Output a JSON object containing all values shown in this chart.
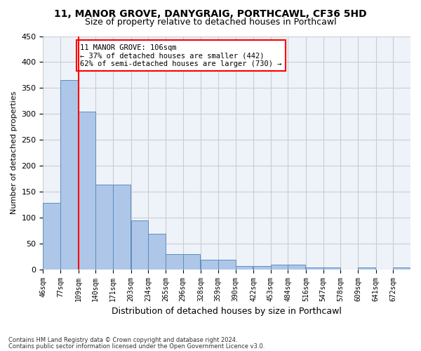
{
  "title1": "11, MANOR GROVE, DANYGRAIG, PORTHCAWL, CF36 5HD",
  "title2": "Size of property relative to detached houses in Porthcawl",
  "xlabel": "Distribution of detached houses by size in Porthcawl",
  "ylabel": "Number of detached properties",
  "bar_color": "#aec6e8",
  "bar_edge_color": "#5a8fc0",
  "bg_color": "#eef3fa",
  "grid_color": "#cccccc",
  "bins": [
    46,
    77,
    109,
    140,
    171,
    203,
    234,
    265,
    296,
    328,
    359,
    390,
    422,
    453,
    484,
    516,
    547,
    578,
    609,
    641,
    672,
    703
  ],
  "bin_labels": [
    "46sqm",
    "77sqm",
    "109sqm",
    "140sqm",
    "171sqm",
    "203sqm",
    "234sqm",
    "265sqm",
    "296sqm",
    "328sqm",
    "359sqm",
    "390sqm",
    "422sqm",
    "453sqm",
    "484sqm",
    "516sqm",
    "547sqm",
    "578sqm",
    "609sqm",
    "641sqm",
    "672sqm"
  ],
  "counts": [
    128,
    365,
    304,
    164,
    163,
    94,
    68,
    30,
    30,
    18,
    18,
    7,
    6,
    9,
    9,
    4,
    4,
    0,
    4,
    0,
    4
  ],
  "vline_x": 109,
  "annotation_text1": "11 MANOR GROVE: 106sqm",
  "annotation_text2": "← 37% of detached houses are smaller (442)",
  "annotation_text3": "62% of semi-detached houses are larger (730) →",
  "annotation_box_color": "white",
  "annotation_box_edge_color": "red",
  "vline_color": "red",
  "footer1": "Contains HM Land Registry data © Crown copyright and database right 2024.",
  "footer2": "Contains public sector information licensed under the Open Government Licence v3.0.",
  "ylim": [
    0,
    450
  ],
  "yticks": [
    0,
    50,
    100,
    150,
    200,
    250,
    300,
    350,
    400,
    450
  ]
}
